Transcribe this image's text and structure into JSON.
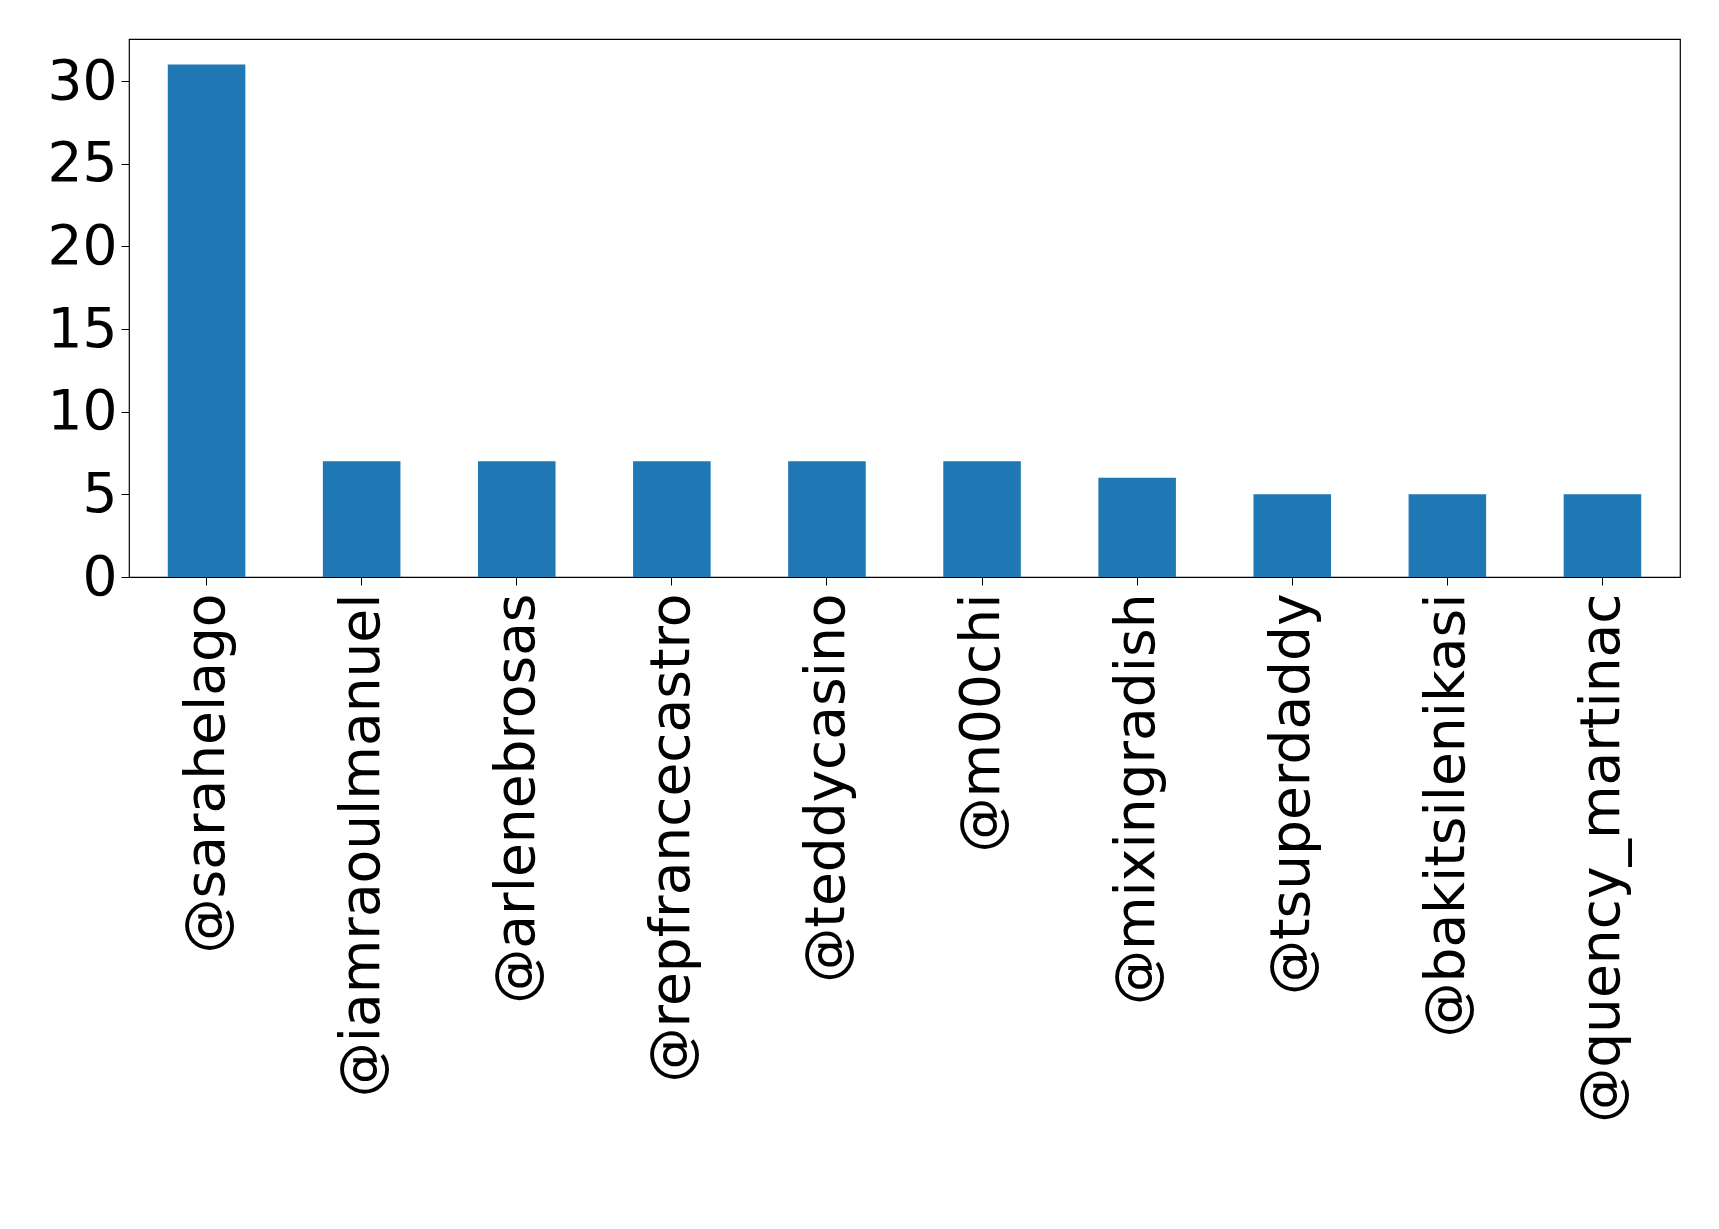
{
  "chart_data": {
    "type": "bar",
    "categories": [
      "@sarahelago",
      "@iamraoulmanuel",
      "@arlenebrosas",
      "@repfrancecastro",
      "@teddycasino",
      "@m00chi",
      "@mixingradish",
      "@tsuperdaddy",
      "@bakitsilenikasi",
      "@quency_martinac"
    ],
    "values": [
      31,
      7,
      7,
      7,
      7,
      7,
      6,
      5,
      5,
      5
    ],
    "color": "#1f77b4",
    "ylim": [
      0,
      32.55
    ],
    "yticks": [
      0,
      5,
      10,
      15,
      20,
      25,
      30
    ],
    "grid": false
  }
}
